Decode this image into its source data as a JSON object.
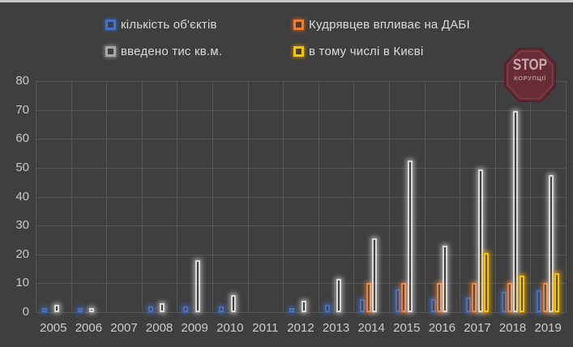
{
  "page": {
    "background": "#3F3F3F",
    "top_strip_color": "#C9C9C9",
    "gridline_color": "#575757"
  },
  "legend": {
    "items": [
      {
        "label": "кількість об'єктів",
        "color": "#4472C4",
        "glow": "rgba(68,114,196,0.55)"
      },
      {
        "label": "Кудрявцев впливає на ДАБІ",
        "color": "#ED7D31",
        "glow": "rgba(237,125,49,0.5)"
      },
      {
        "label": "введено тис кв.м.",
        "color": "#A6A6A6",
        "glow": "rgba(230,230,230,0.45)"
      },
      {
        "label": "в тому числі в Києві",
        "color": "#FFC000",
        "glow": "rgba(255,192,0,0.5)"
      }
    ]
  },
  "stamp": {
    "line1": "STOP",
    "line2": "КОРУПЦІЇ",
    "fill": "rgba(106,43,54,0.93)",
    "border": "rgba(88,30,42,0.95)",
    "inner_ring": "rgba(160,95,105,0.45)"
  },
  "chart_data": {
    "type": "bar",
    "title": "",
    "xlabel": "",
    "ylabel": "",
    "categories": [
      "2005",
      "2006",
      "2007",
      "2008",
      "2009",
      "2010",
      "2011",
      "2012",
      "2013",
      "2014",
      "2015",
      "2016",
      "2017",
      "2018",
      "2019"
    ],
    "series": [
      {
        "name": "кількість об'єктів",
        "color": "#4472C4",
        "glow": "rgba(68,114,196,0.65)",
        "values": [
          1.5,
          1.5,
          0,
          2,
          2,
          2,
          0,
          1.5,
          2.5,
          4.5,
          8,
          4.5,
          5,
          7,
          7.5
        ]
      },
      {
        "name": "Кудрявцев впливає на ДАБІ",
        "color": "#ED7D31",
        "glow": "rgba(237,125,49,0.6)",
        "values": [
          0,
          0,
          0,
          0,
          0,
          0,
          0,
          0,
          0,
          10,
          10,
          10,
          10,
          10,
          10
        ]
      },
      {
        "name": "введено тис кв.м.",
        "color": "#D9D9D9",
        "glow": "rgba(255,255,255,0.5)",
        "values": [
          2.5,
          1.5,
          0,
          3,
          18,
          6,
          0,
          4,
          11.5,
          25.5,
          52.5,
          23,
          49.5,
          69.5,
          47.5
        ]
      },
      {
        "name": "в тому числі в Києві",
        "color": "#FFC000",
        "glow": "rgba(255,192,0,0.6)",
        "values": [
          0,
          0,
          0,
          0,
          0,
          0,
          0,
          0,
          0,
          0,
          0,
          0,
          20.5,
          12.5,
          13.5
        ]
      }
    ],
    "ylim": [
      0,
      80
    ],
    "yticks": [
      0,
      10,
      20,
      30,
      40,
      50,
      60,
      70,
      80
    ],
    "grid": true,
    "legend_position": "top"
  }
}
